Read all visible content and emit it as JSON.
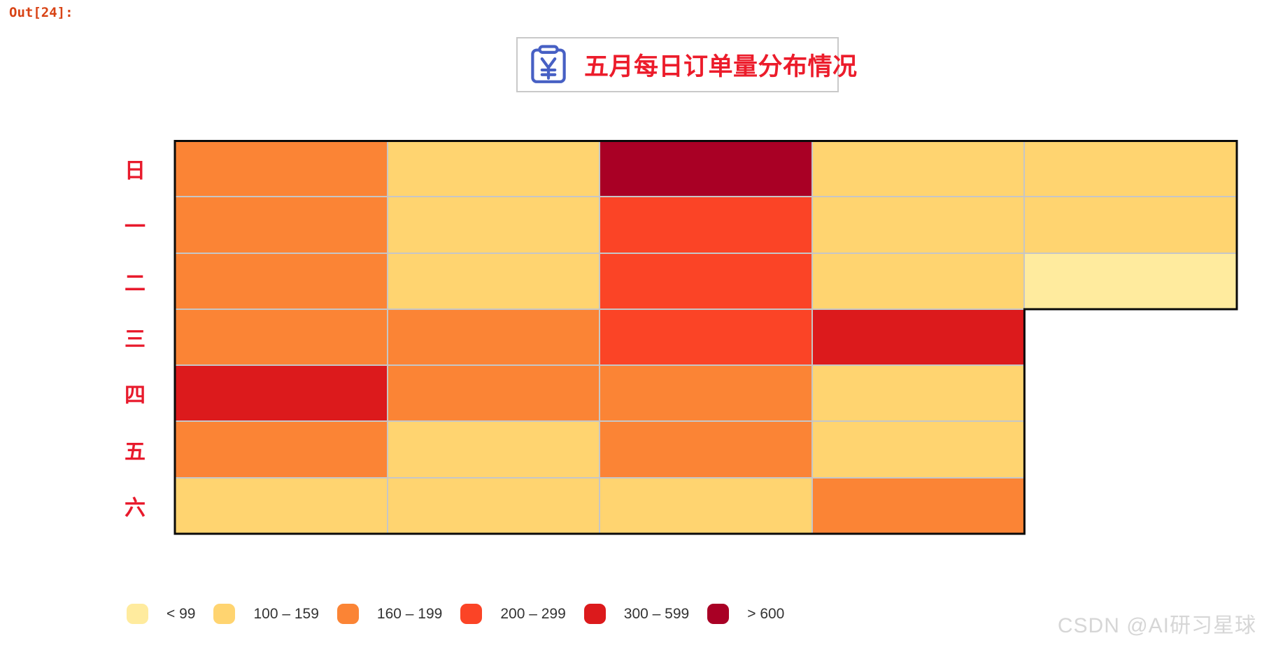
{
  "prompt": {
    "label": "Out[24]:"
  },
  "title": {
    "text": "五月每日订单量分布情况"
  },
  "watermark": {
    "text": "CSDN @AI研习星球"
  },
  "colors": {
    "prompt_red": "#d84315",
    "title_red": "#ec1c2b",
    "row_label_red": "#e81a2c",
    "icon_blue": "#4760c4",
    "grid_line_gray": "#c6c6c6",
    "outline_black": "#0a0a0a",
    "legend_text": "#333333",
    "watermark_gray": "#d6d6d6"
  },
  "chart_data": {
    "type": "heatmap",
    "subtype": "calendar-month",
    "title": "五月每日订单量分布情况",
    "row_axis": "weekday",
    "row_labels": [
      "日",
      "一",
      "二",
      "三",
      "四",
      "五",
      "六"
    ],
    "column_axis": "week-of-month",
    "column_count": 5,
    "legend_position": "bottom-left",
    "legend": [
      {
        "label": "< 99",
        "color": "#FFEB9E"
      },
      {
        "label": "100 – 159",
        "color": "#FFD470"
      },
      {
        "label": "160 – 199",
        "color": "#FB8435"
      },
      {
        "label": "200 – 299",
        "color": "#FB4426"
      },
      {
        "label": "300 – 599",
        "color": "#DC1A1C"
      },
      {
        "label": "> 600",
        "color": "#A90025"
      }
    ],
    "cells_note": "values are legend bucket indexes (0 = '< 99' ... 5 = '> 600'); null = no day in that week slot",
    "cells": [
      [
        2,
        1,
        5,
        1,
        1
      ],
      [
        2,
        1,
        3,
        1,
        1
      ],
      [
        2,
        1,
        3,
        1,
        0
      ],
      [
        2,
        2,
        3,
        4,
        null
      ],
      [
        4,
        2,
        2,
        1,
        null
      ],
      [
        2,
        1,
        2,
        1,
        null
      ],
      [
        1,
        1,
        1,
        2,
        null
      ]
    ]
  }
}
